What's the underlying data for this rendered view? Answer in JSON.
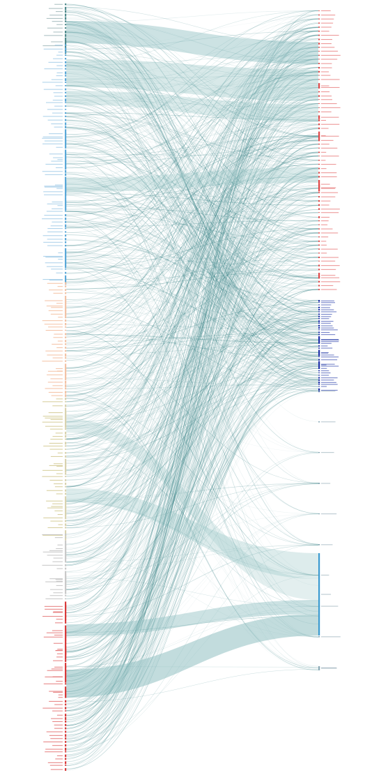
{
  "diagram": {
    "type": "bipartite-flow",
    "title": "",
    "colors": {
      "flow": "#2f7d80",
      "band": "#8fbfc1",
      "background": "#ffffff"
    },
    "left_groups": [
      {
        "name": "g1",
        "color": "#4f8a8c",
        "label_color": "#9bb4b5",
        "count": 12
      },
      {
        "name": "g2",
        "color": "#5aa8d8",
        "label_color": "#9cc9e6",
        "count": 70
      },
      {
        "name": "g3",
        "color": "#f3c3a6",
        "label_color": "#f2b896",
        "count": 34
      },
      {
        "name": "g4",
        "color": "#d9d3b0",
        "label_color": "#cfc58a",
        "count": 40
      },
      {
        "name": "g5",
        "color": "#c9c9c9",
        "label_color": "#bdbdbd",
        "count": 20
      },
      {
        "name": "g6",
        "color": "#d93a3a",
        "label_color": "#e26b6b",
        "count": 50
      }
    ],
    "right_groups": [
      {
        "name": "r1",
        "color": "#e04848",
        "label_color": "#e88080",
        "count": 70
      },
      {
        "name": "r2",
        "color": "#2233aa",
        "label_color": "#5566bb",
        "count": 40
      },
      {
        "name": "r3",
        "color": "#8aa9b6",
        "label_color": "#a9bcc4",
        "count": 10
      }
    ]
  }
}
